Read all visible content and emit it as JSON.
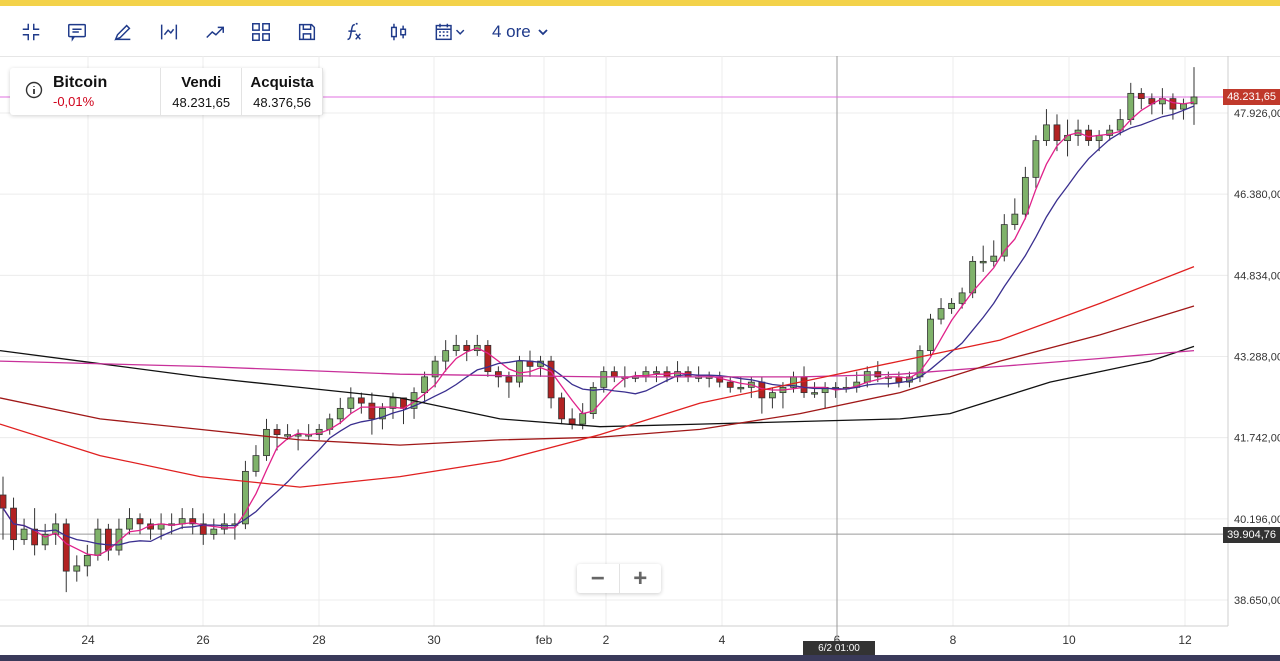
{
  "toolbar": {
    "period_label": "4 ore",
    "icons": [
      "collapse-icon",
      "comment-icon",
      "pencil-icon",
      "indicator-icon",
      "trend-icon",
      "layout-icon",
      "save-icon",
      "function-icon",
      "candle-type-icon",
      "calendar-icon"
    ]
  },
  "instrument": {
    "name": "Bitcoin",
    "change": "-0,01%",
    "sell_label": "Vendi",
    "sell_value": "48.231,65",
    "buy_label": "Acquista",
    "buy_value": "48.376,56"
  },
  "price_axis": {
    "ticks": [
      "47.926,00",
      "46.380,00",
      "44.834,00",
      "43.288,00",
      "41.742,00",
      "40.196,00",
      "38.650,00"
    ],
    "current_price_tag": "48.231,65",
    "crosshair_price_tag": "39.904,76"
  },
  "time_axis": {
    "ticks": [
      "24",
      "26",
      "28",
      "30",
      "feb",
      "2",
      "4",
      "6",
      "8",
      "10",
      "12"
    ],
    "crosshair_label": "6/2 01:00"
  },
  "colors": {
    "accent": "#1f3a8a",
    "up_candle": "#7fb26a",
    "down_candle": "#b22222",
    "current_price": "#c0392b",
    "crosshair_tag": "#333333",
    "ma_fast": "#e0218a",
    "ma_mid": "#3a2f8f",
    "ma_slow_red": "#e02020",
    "ma_darkred": "#a01818",
    "ma_pink": "#c8309a",
    "ma_black": "#111111"
  },
  "zoom": {
    "minus": "−",
    "plus": "+"
  },
  "chart_data": {
    "type": "candlestick",
    "price_range": [
      38000,
      48800
    ],
    "candles": [
      [
        40650,
        40400,
        41000,
        39800
      ],
      [
        40400,
        39800,
        40600,
        39600
      ],
      [
        39800,
        40000,
        40200,
        39700
      ],
      [
        40000,
        39700,
        40400,
        39500
      ],
      [
        39700,
        39900,
        40100,
        39600
      ],
      [
        39900,
        40100,
        40300,
        39700
      ],
      [
        40100,
        39200,
        40200,
        38800
      ],
      [
        39200,
        39300,
        39500,
        39000
      ],
      [
        39300,
        39500,
        39700,
        39100
      ],
      [
        39500,
        40000,
        40200,
        39400
      ],
      [
        40000,
        39600,
        40100,
        39400
      ],
      [
        39600,
        40000,
        40200,
        39500
      ],
      [
        40000,
        40200,
        40400,
        39900
      ],
      [
        40200,
        40100,
        40300,
        39900
      ],
      [
        40100,
        40000,
        40200,
        39800
      ],
      [
        40000,
        40100,
        40300,
        39800
      ],
      [
        40100,
        40100,
        40300,
        39900
      ],
      [
        40100,
        40200,
        40400,
        40000
      ],
      [
        40200,
        40100,
        40400,
        39900
      ],
      [
        40100,
        39900,
        40300,
        39700
      ],
      [
        39900,
        40000,
        40200,
        39800
      ],
      [
        40000,
        40100,
        40300,
        39900
      ],
      [
        40100,
        40100,
        40300,
        39800
      ],
      [
        40100,
        41100,
        41300,
        40000
      ],
      [
        41100,
        41400,
        41600,
        41000
      ],
      [
        41400,
        41900,
        42100,
        41300
      ],
      [
        41900,
        41800,
        42000,
        41500
      ],
      [
        41800,
        41800,
        42000,
        41700
      ],
      [
        41800,
        41800,
        41900,
        41500
      ],
      [
        41800,
        41800,
        42000,
        41700
      ],
      [
        41800,
        41900,
        42000,
        41700
      ],
      [
        41900,
        42100,
        42200,
        41800
      ],
      [
        42100,
        42300,
        42500,
        42000
      ],
      [
        42300,
        42500,
        42700,
        42200
      ],
      [
        42500,
        42400,
        42600,
        42200
      ],
      [
        42400,
        42100,
        42600,
        41800
      ],
      [
        42100,
        42300,
        42400,
        41900
      ],
      [
        42300,
        42500,
        42600,
        42100
      ],
      [
        42500,
        42300,
        42500,
        42000
      ],
      [
        42300,
        42600,
        42700,
        42100
      ],
      [
        42600,
        42900,
        43000,
        42400
      ],
      [
        42900,
        43200,
        43300,
        42700
      ],
      [
        43200,
        43400,
        43600,
        43000
      ],
      [
        43400,
        43500,
        43700,
        43300
      ],
      [
        43500,
        43400,
        43600,
        43200
      ],
      [
        43400,
        43500,
        43700,
        43300
      ],
      [
        43500,
        43000,
        43600,
        42900
      ],
      [
        43000,
        42900,
        43100,
        42700
      ],
      [
        42900,
        42800,
        43000,
        42500
      ],
      [
        42800,
        43200,
        43300,
        42700
      ],
      [
        43200,
        43100,
        43400,
        42900
      ],
      [
        43100,
        43200,
        43300,
        42900
      ],
      [
        43200,
        42500,
        43300,
        42300
      ],
      [
        42500,
        42100,
        42600,
        42000
      ],
      [
        42100,
        42000,
        42300,
        41900
      ],
      [
        42000,
        42200,
        42400,
        41900
      ],
      [
        42200,
        42700,
        42800,
        42100
      ],
      [
        42700,
        43000,
        43100,
        42600
      ],
      [
        43000,
        42900,
        43100,
        42800
      ],
      [
        42900,
        42900,
        43100,
        42700
      ],
      [
        42900,
        42900,
        43000,
        42800
      ],
      [
        42900,
        43000,
        43100,
        42800
      ],
      [
        43000,
        43000,
        43100,
        42800
      ],
      [
        43000,
        42900,
        43100,
        42800
      ],
      [
        42900,
        43000,
        43200,
        42800
      ],
      [
        43000,
        42900,
        43100,
        42800
      ],
      [
        42900,
        42900,
        43100,
        42800
      ],
      [
        42900,
        42900,
        43000,
        42700
      ],
      [
        42900,
        42800,
        43000,
        42700
      ],
      [
        42800,
        42700,
        42900,
        42600
      ],
      [
        42700,
        42700,
        42900,
        42600
      ],
      [
        42700,
        42800,
        42900,
        42500
      ],
      [
        42800,
        42500,
        42900,
        42200
      ],
      [
        42500,
        42600,
        42700,
        42300
      ],
      [
        42600,
        42700,
        42800,
        42300
      ],
      [
        42700,
        42900,
        43000,
        42600
      ],
      [
        42900,
        42600,
        43100,
        42500
      ],
      [
        42600,
        42600,
        42800,
        42500
      ],
      [
        42600,
        42700,
        42800,
        42300
      ],
      [
        42700,
        42700,
        42800,
        42500
      ],
      [
        42700,
        42700,
        42900,
        42600
      ],
      [
        42700,
        42800,
        43000,
        42600
      ],
      [
        42800,
        43000,
        43100,
        42700
      ],
      [
        43000,
        42900,
        43200,
        42800
      ],
      [
        42900,
        42900,
        43000,
        42700
      ],
      [
        42900,
        42800,
        43000,
        42700
      ],
      [
        42800,
        42900,
        43000,
        42700
      ],
      [
        42900,
        43400,
        43500,
        42800
      ],
      [
        43400,
        44000,
        44100,
        43300
      ],
      [
        44000,
        44200,
        44400,
        43900
      ],
      [
        44200,
        44300,
        44400,
        44100
      ],
      [
        44300,
        44500,
        44600,
        44200
      ],
      [
        44500,
        45100,
        45200,
        44400
      ],
      [
        45100,
        45100,
        45400,
        44900
      ],
      [
        45100,
        45200,
        45500,
        45000
      ],
      [
        45200,
        45800,
        46000,
        45100
      ],
      [
        45800,
        46000,
        46300,
        45700
      ],
      [
        46000,
        46700,
        46900,
        45900
      ],
      [
        46700,
        47400,
        47500,
        46500
      ],
      [
        47400,
        47700,
        48000,
        47300
      ],
      [
        47700,
        47400,
        47900,
        47200
      ],
      [
        47400,
        47500,
        47800,
        47100
      ],
      [
        47500,
        47600,
        47800,
        47300
      ],
      [
        47600,
        47400,
        47700,
        47300
      ],
      [
        47400,
        47500,
        47600,
        47200
      ],
      [
        47500,
        47600,
        47700,
        47400
      ],
      [
        47600,
        47800,
        48000,
        47500
      ],
      [
        47800,
        48300,
        48500,
        47700
      ],
      [
        48300,
        48200,
        48400,
        48000
      ],
      [
        48200,
        48100,
        48300,
        47900
      ],
      [
        48100,
        48200,
        48400,
        47900
      ],
      [
        48200,
        48000,
        48300,
        47800
      ],
      [
        48000,
        48100,
        48200,
        47800
      ],
      [
        48100,
        48231,
        48800,
        47700
      ]
    ],
    "moving_averages": [
      {
        "color": "ma_black",
        "values": [
          [
            0,
            43400
          ],
          [
            100,
            43150
          ],
          [
            200,
            42900
          ],
          [
            300,
            42700
          ],
          [
            400,
            42500
          ],
          [
            500,
            42100
          ],
          [
            600,
            41950
          ],
          [
            700,
            42000
          ],
          [
            800,
            42050
          ],
          [
            900,
            42100
          ],
          [
            950,
            42200
          ],
          [
            1000,
            42500
          ],
          [
            1050,
            42800
          ],
          [
            1100,
            43000
          ],
          [
            1150,
            43200
          ],
          [
            1194,
            43480
          ]
        ]
      },
      {
        "color": "ma_pink",
        "values": [
          [
            0,
            43200
          ],
          [
            200,
            43100
          ],
          [
            400,
            42950
          ],
          [
            600,
            42900
          ],
          [
            800,
            42900
          ],
          [
            900,
            42950
          ],
          [
            1000,
            43100
          ],
          [
            1100,
            43250
          ],
          [
            1194,
            43400
          ]
        ]
      },
      {
        "color": "ma_darkred",
        "values": [
          [
            0,
            42500
          ],
          [
            100,
            42100
          ],
          [
            200,
            41900
          ],
          [
            300,
            41700
          ],
          [
            400,
            41600
          ],
          [
            500,
            41700
          ],
          [
            600,
            41750
          ],
          [
            700,
            41900
          ],
          [
            800,
            42200
          ],
          [
            900,
            42600
          ],
          [
            1000,
            43200
          ],
          [
            1100,
            43700
          ],
          [
            1194,
            44250
          ]
        ]
      },
      {
        "color": "ma_slow_red",
        "values": [
          [
            0,
            42000
          ],
          [
            100,
            41400
          ],
          [
            200,
            41000
          ],
          [
            300,
            40800
          ],
          [
            400,
            41000
          ],
          [
            500,
            41300
          ],
          [
            600,
            41800
          ],
          [
            700,
            42400
          ],
          [
            800,
            42800
          ],
          [
            900,
            43200
          ],
          [
            1000,
            43600
          ],
          [
            1100,
            44300
          ],
          [
            1194,
            45000
          ]
        ]
      }
    ]
  }
}
